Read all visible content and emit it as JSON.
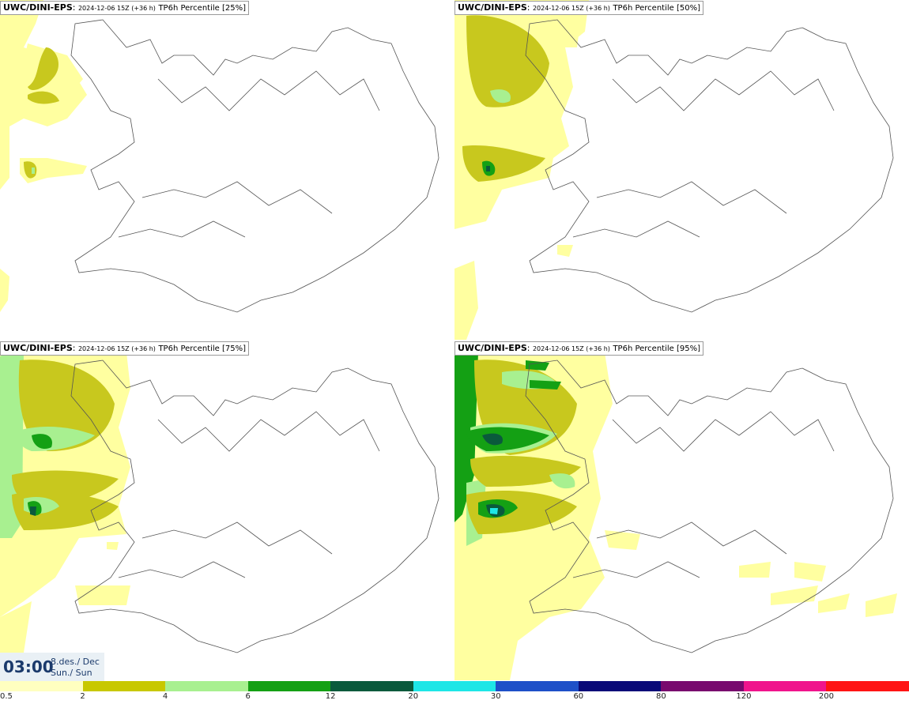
{
  "panels": [
    {
      "model": "UWC/DINI-EPS",
      "run": "2024-12-06 15Z (+36 h)",
      "param": "TP6h Percentile [25%]"
    },
    {
      "model": "UWC/DINI-EPS",
      "run": "2024-12-06 15Z (+36 h)",
      "param": "TP6h Percentile [50%]"
    },
    {
      "model": "UWC/DINI-EPS",
      "run": "2024-12-06 15Z (+36 h)",
      "param": "TP6h Percentile [75%]"
    },
    {
      "model": "UWC/DINI-EPS",
      "run": "2024-12-06 15Z (+36 h)",
      "param": "TP6h Percentile [95%]"
    }
  ],
  "valid_time": {
    "time": "03:00",
    "date_line1": "8.des./ Dec",
    "date_line2": "Sun./ Sun"
  },
  "legend": {
    "colors": [
      "#ffffc0",
      "#c8c800",
      "#a8f090",
      "#14a014",
      "#0a5a3c",
      "#1ee6e6",
      "#1e50c8",
      "#0a0a78",
      "#780a6e",
      "#f0148c",
      "#ff1414"
    ],
    "labels": [
      "0.5",
      "2",
      "4",
      "6",
      "12",
      "20",
      "30",
      "60",
      "80",
      "120",
      "200"
    ]
  },
  "palette": {
    "light_yellow": "#ffffa0",
    "olive": "#c8c81e",
    "light_green": "#a8f090",
    "green": "#14a014",
    "dark_green": "#0a5a3c",
    "cyan": "#1ee6e6",
    "coast": "#555555"
  }
}
